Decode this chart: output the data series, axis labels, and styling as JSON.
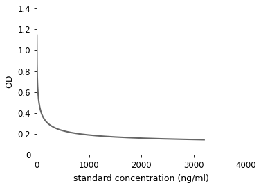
{
  "xlabel": "standard concentration (ng/ml)",
  "ylabel": "OD",
  "xlim": [
    0,
    4000
  ],
  "ylim": [
    0,
    1.4
  ],
  "xticks": [
    0,
    1000,
    2000,
    3000,
    4000
  ],
  "yticks": [
    0,
    0.2,
    0.4,
    0.6,
    0.8,
    1.0,
    1.2,
    1.4
  ],
  "line_color": "#666666",
  "line_width": 1.5,
  "background_color": "#ffffff",
  "curve_x_start": 0.1,
  "curve_x_end": 3200,
  "curve_params": {
    "a": 1.12,
    "b": 15.0,
    "n": 0.55,
    "c": 0.09
  },
  "xlabel_fontsize": 9,
  "ylabel_fontsize": 9,
  "tick_fontsize": 8.5
}
